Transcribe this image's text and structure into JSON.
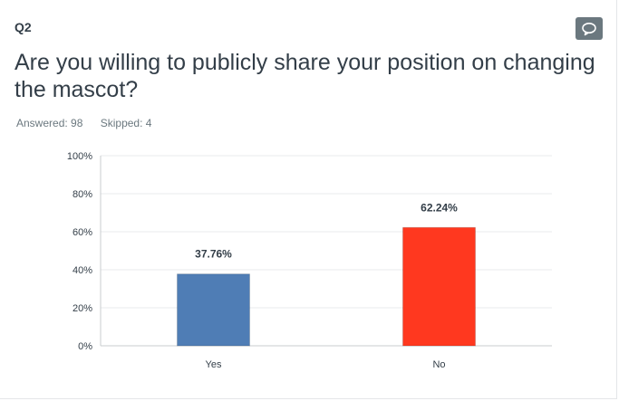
{
  "question": {
    "number": "Q2",
    "title": "Are you willing to publicly share your position on changing the mascot?",
    "answered_label": "Answered: 98",
    "skipped_label": "Skipped: 4",
    "comment_icon": "speech-bubble-icon"
  },
  "colors": {
    "yes": "#4f7db5",
    "no": "#ff381f",
    "grid": "#e9ebec",
    "axis": "#c8cccf",
    "comment_button": "#6b787f"
  },
  "chart_data": {
    "type": "bar",
    "title": "",
    "xlabel": "",
    "ylabel": "",
    "categories": [
      "Yes",
      "No"
    ],
    "values": [
      37.76,
      62.24
    ],
    "data_labels": [
      "37.76%",
      "62.24%"
    ],
    "ylim": [
      0,
      100
    ],
    "y_ticks": [
      0,
      20,
      40,
      60,
      80,
      100
    ],
    "y_tick_labels": [
      "0%",
      "20%",
      "40%",
      "60%",
      "80%",
      "100%"
    ],
    "grid": true,
    "legend": "none"
  }
}
